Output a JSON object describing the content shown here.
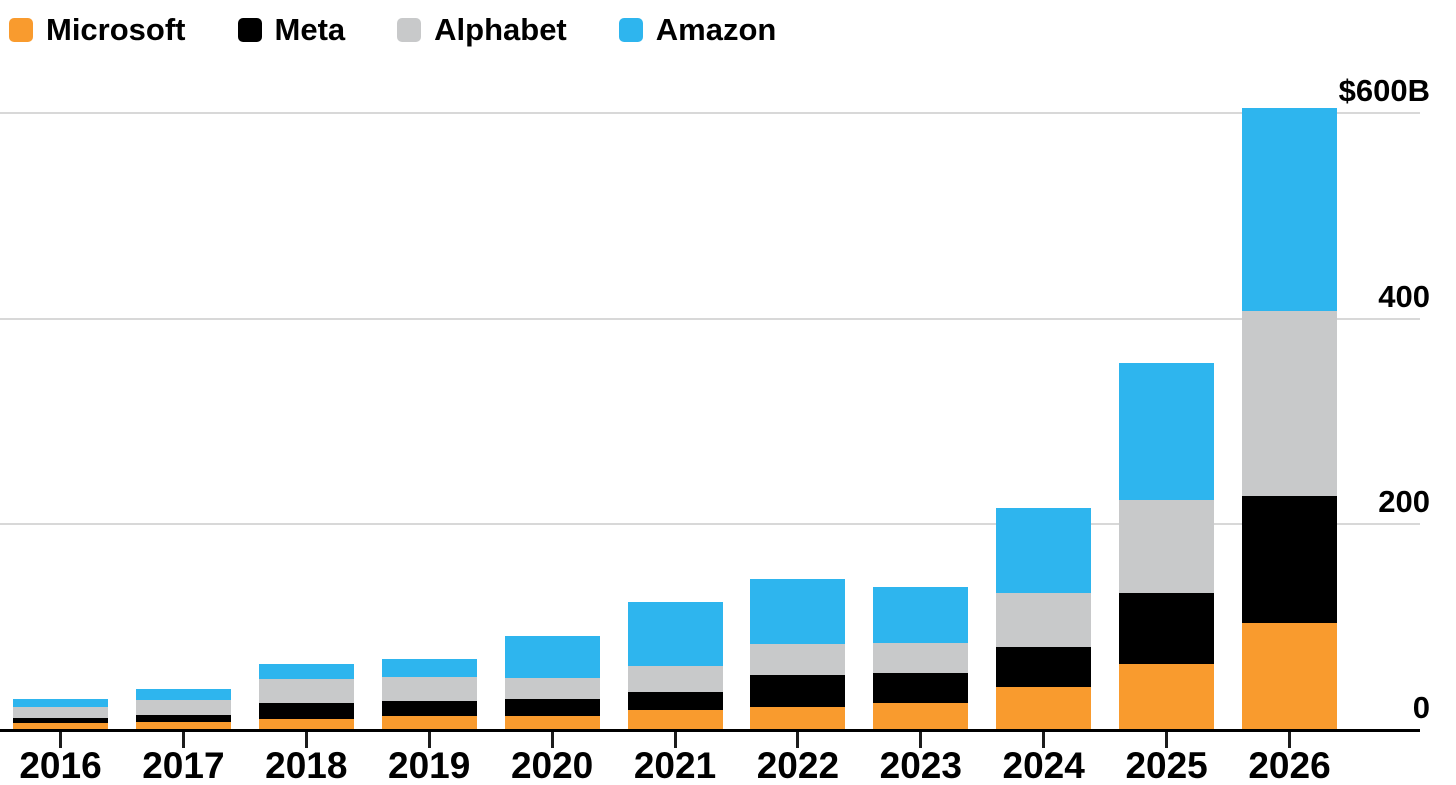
{
  "legend": {
    "items": [
      {
        "label": "Microsoft",
        "color": "#F99B2E"
      },
      {
        "label": "Meta",
        "color": "#000000"
      },
      {
        "label": "Alphabet",
        "color": "#C8C9CA"
      },
      {
        "label": "Amazon",
        "color": "#2EB5EE"
      }
    ]
  },
  "chart_data": {
    "type": "bar",
    "stacked": true,
    "title": "",
    "xlabel": "",
    "ylabel": "",
    "unit": "billions of US dollars",
    "categories": [
      "2016",
      "2017",
      "2018",
      "2019",
      "2020",
      "2021",
      "2022",
      "2023",
      "2024",
      "2025",
      "2026"
    ],
    "series": [
      {
        "name": "Microsoft",
        "color": "#F99B2E",
        "values": [
          7,
          8,
          11,
          14,
          14,
          19,
          22,
          26,
          42,
          64,
          104
        ]
      },
      {
        "name": "Meta",
        "color": "#000000",
        "values": [
          5,
          7,
          15,
          14,
          16,
          18,
          31,
          29,
          39,
          69,
          124
        ]
      },
      {
        "name": "Alphabet",
        "color": "#C8C9CA",
        "values": [
          10,
          14,
          24,
          24,
          21,
          25,
          31,
          30,
          52,
          91,
          179
        ]
      },
      {
        "name": "Amazon",
        "color": "#2EB5EE",
        "values": [
          8,
          11,
          14,
          17,
          40,
          62,
          63,
          54,
          83,
          133,
          198
        ]
      }
    ],
    "totals": [
      30,
      40,
      64,
      69,
      91,
      124,
      147,
      139,
      216,
      357,
      605
    ],
    "y_axis": {
      "min": 0,
      "max": 600,
      "ticks": [
        {
          "value": 600,
          "label": "$600B"
        },
        {
          "value": 400,
          "label": "400"
        },
        {
          "value": 200,
          "label": "200"
        },
        {
          "value": 0,
          "label": "0"
        }
      ],
      "side": "right"
    },
    "grid": true,
    "gridline_color": "#D8D8D8",
    "axis_color": "#000000",
    "legend_position": "top-left"
  }
}
